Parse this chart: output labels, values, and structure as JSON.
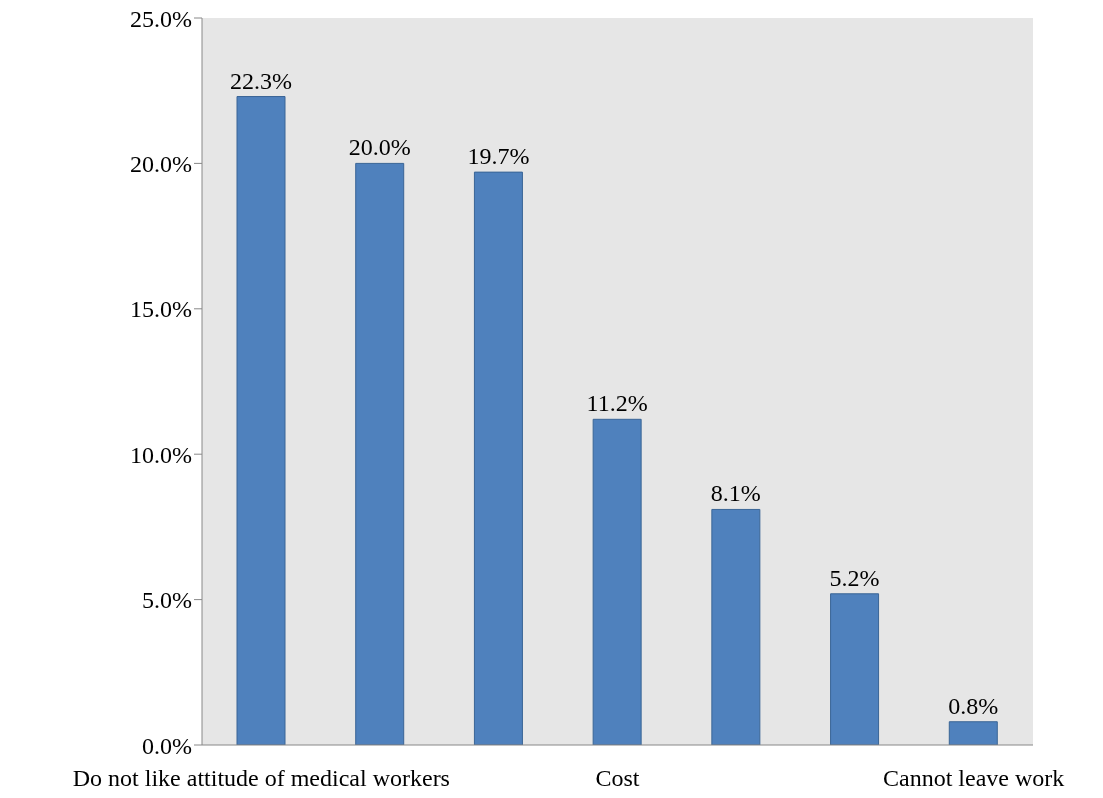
{
  "chart_data": {
    "type": "bar",
    "categories": [
      "Do not like attitude of medical workers",
      null,
      null,
      "Cost",
      null,
      null,
      "Cannot leave work"
    ],
    "values": [
      22.3,
      20.0,
      19.7,
      11.2,
      8.1,
      5.2,
      0.8
    ],
    "value_labels": [
      "22.3%",
      "20.0%",
      "19.7%",
      "11.2%",
      "8.1%",
      "5.2%",
      "0.8%"
    ],
    "color": "#4f81bd",
    "ylim": [
      0,
      25
    ],
    "yticks": [
      {
        "value": 0,
        "label": "0.0%"
      },
      {
        "value": 5,
        "label": "5.0%"
      },
      {
        "value": 10,
        "label": "10.0%"
      },
      {
        "value": 15,
        "label": "15.0%"
      },
      {
        "value": 20,
        "label": "20.0%"
      },
      {
        "value": 25,
        "label": "25.0%"
      }
    ],
    "grid": false,
    "legend": false
  }
}
